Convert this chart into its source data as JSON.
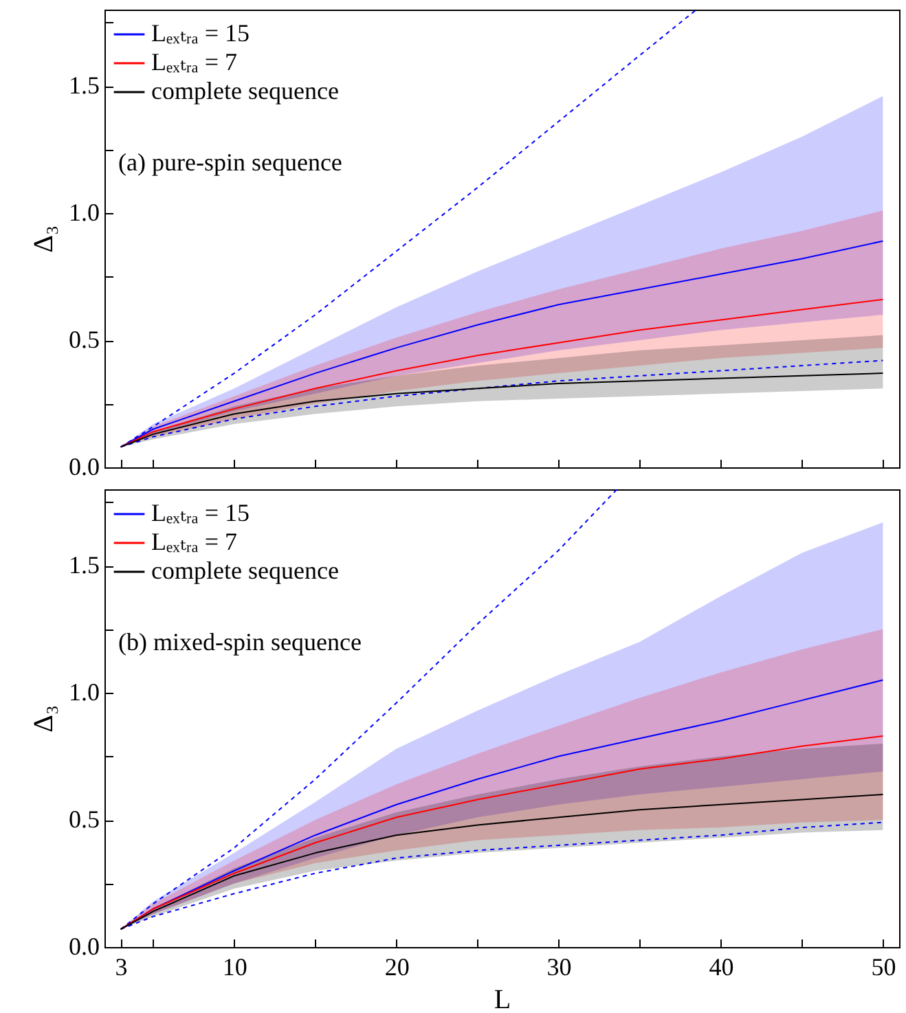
{
  "chart_data": [
    {
      "type": "line",
      "ylabel": "Δ₃",
      "annotations": [
        "(a) pure-spin sequence"
      ],
      "legend": "top left",
      "tick_labels": "y",
      "xlim": [
        2,
        51
      ],
      "ylim": [
        0,
        1.8
      ],
      "xticks": [
        3,
        {
          "value": 5,
          "label": null
        },
        10,
        {
          "value": 15,
          "label": null
        },
        20,
        {
          "value": 25,
          "label": null
        },
        30,
        {
          "value": 35,
          "label": null
        },
        40,
        {
          "value": 45,
          "label": null
        },
        50
      ],
      "yticks": [
        {
          "value": 0,
          "label": "0.0"
        },
        {
          "value": 0.25,
          "label": null
        },
        {
          "value": 0.5,
          "label": "0.5"
        },
        {
          "value": 0.75,
          "label": null
        },
        {
          "value": 1,
          "label": "1.0"
        },
        {
          "value": 1.25,
          "label": null
        },
        {
          "value": 1.5,
          "label": "1.5"
        },
        {
          "value": 1.75,
          "label": null
        }
      ],
      "x": [
        3,
        5,
        10,
        15,
        20,
        25,
        30,
        35,
        40,
        45,
        50
      ],
      "series": [
        {
          "name": "Lₑₓₜᵣₐ = 15",
          "color": "#0000ff",
          "values": [
            0.08,
            0.15,
            0.26,
            0.37,
            0.47,
            0.56,
            0.64,
            0.7,
            0.76,
            0.82,
            0.89
          ],
          "lower": [
            0.08,
            0.13,
            0.22,
            0.29,
            0.36,
            0.41,
            0.46,
            0.5,
            0.54,
            0.57,
            0.6
          ],
          "upper": [
            0.08,
            0.17,
            0.31,
            0.47,
            0.63,
            0.77,
            0.9,
            1.03,
            1.16,
            1.3,
            1.46
          ]
        },
        {
          "name": "Lₑₓₜᵣₐ = 7",
          "color": "#ff0000",
          "values": [
            0.08,
            0.14,
            0.23,
            0.31,
            0.38,
            0.44,
            0.49,
            0.54,
            0.58,
            0.62,
            0.66
          ],
          "lower": [
            0.08,
            0.12,
            0.19,
            0.25,
            0.3,
            0.34,
            0.37,
            0.4,
            0.43,
            0.45,
            0.47
          ],
          "upper": [
            0.08,
            0.16,
            0.28,
            0.4,
            0.51,
            0.61,
            0.7,
            0.78,
            0.86,
            0.93,
            1.01
          ]
        },
        {
          "name": "complete sequence",
          "color": "#000000",
          "values": [
            0.08,
            0.13,
            0.21,
            0.26,
            0.29,
            0.31,
            0.33,
            0.34,
            0.35,
            0.36,
            0.37
          ],
          "lower": [
            0.08,
            0.11,
            0.17,
            0.21,
            0.24,
            0.26,
            0.27,
            0.28,
            0.29,
            0.3,
            0.31
          ],
          "upper": [
            0.08,
            0.14,
            0.24,
            0.31,
            0.36,
            0.4,
            0.43,
            0.46,
            0.48,
            0.5,
            0.52
          ]
        },
        {
          "type": "line",
          "line_style": "dashed",
          "color": "#0000ff",
          "x": [
            3,
            5,
            10,
            15,
            20,
            25,
            30,
            35,
            38.5
          ],
          "values": [
            0.08,
            0.16,
            0.37,
            0.6,
            0.85,
            1.1,
            1.36,
            1.62,
            1.8
          ]
        },
        {
          "type": "line",
          "line_style": "dashed",
          "color": "#0000ff",
          "values": [
            0.08,
            0.12,
            0.19,
            0.24,
            0.28,
            0.31,
            0.34,
            0.36,
            0.38,
            0.4,
            0.42
          ]
        }
      ]
    },
    {
      "type": "line",
      "xlabel": "L",
      "ylabel": "Δ₃",
      "annotations": [
        "(b) mixed-spin sequence"
      ],
      "legend": "top left",
      "xlim": [
        2,
        51
      ],
      "ylim": [
        0,
        1.8
      ],
      "xticks": [
        3,
        {
          "value": 5,
          "label": null
        },
        10,
        {
          "value": 15,
          "label": null
        },
        20,
        {
          "value": 25,
          "label": null
        },
        30,
        {
          "value": 35,
          "label": null
        },
        40,
        {
          "value": 45,
          "label": null
        },
        50
      ],
      "yticks": [
        {
          "value": 0,
          "label": "0.0"
        },
        {
          "value": 0.25,
          "label": null
        },
        0.5,
        {
          "value": 0.75,
          "label": null
        },
        {
          "value": 1,
          "label": "1.0"
        },
        {
          "value": 1.25,
          "label": null
        },
        1.5,
        {
          "value": 1.75,
          "label": null
        }
      ],
      "x": [
        3,
        5,
        10,
        15,
        20,
        25,
        30,
        35,
        40,
        45,
        50
      ],
      "series": [
        {
          "name": "Lₑₓₜᵣₐ = 15",
          "color": "#0000ff",
          "values": [
            0.07,
            0.15,
            0.3,
            0.44,
            0.56,
            0.66,
            0.75,
            0.82,
            0.89,
            0.97,
            1.05
          ],
          "lower": [
            0.07,
            0.13,
            0.25,
            0.35,
            0.44,
            0.51,
            0.56,
            0.6,
            0.63,
            0.66,
            0.69
          ],
          "upper": [
            0.07,
            0.18,
            0.37,
            0.57,
            0.78,
            0.93,
            1.07,
            1.2,
            1.38,
            1.55,
            1.67
          ]
        },
        {
          "name": "Lₑₓₜᵣₐ = 7",
          "color": "#ff0000",
          "values": [
            0.07,
            0.15,
            0.29,
            0.41,
            0.51,
            0.58,
            0.64,
            0.7,
            0.74,
            0.79,
            0.83
          ],
          "lower": [
            0.07,
            0.13,
            0.25,
            0.33,
            0.38,
            0.42,
            0.44,
            0.46,
            0.47,
            0.49,
            0.5
          ],
          "upper": [
            0.07,
            0.17,
            0.34,
            0.5,
            0.64,
            0.76,
            0.87,
            0.98,
            1.08,
            1.17,
            1.25
          ]
        },
        {
          "name": "complete sequence",
          "color": "#000000",
          "values": [
            0.07,
            0.14,
            0.28,
            0.37,
            0.44,
            0.48,
            0.51,
            0.54,
            0.56,
            0.58,
            0.6
          ],
          "lower": [
            0.07,
            0.12,
            0.23,
            0.3,
            0.34,
            0.37,
            0.39,
            0.41,
            0.43,
            0.45,
            0.46
          ],
          "upper": [
            0.07,
            0.15,
            0.31,
            0.43,
            0.53,
            0.6,
            0.66,
            0.71,
            0.75,
            0.78,
            0.8
          ]
        },
        {
          "type": "line",
          "line_style": "dashed",
          "color": "#0000ff",
          "x": [
            3,
            5,
            10,
            15,
            20,
            25,
            30,
            33.6
          ],
          "values": [
            0.07,
            0.17,
            0.39,
            0.66,
            0.96,
            1.27,
            1.56,
            1.8
          ]
        },
        {
          "type": "line",
          "line_style": "dashed",
          "color": "#0000ff",
          "values": [
            0.07,
            0.12,
            0.21,
            0.29,
            0.35,
            0.38,
            0.4,
            0.42,
            0.44,
            0.47,
            0.49
          ]
        }
      ]
    }
  ]
}
